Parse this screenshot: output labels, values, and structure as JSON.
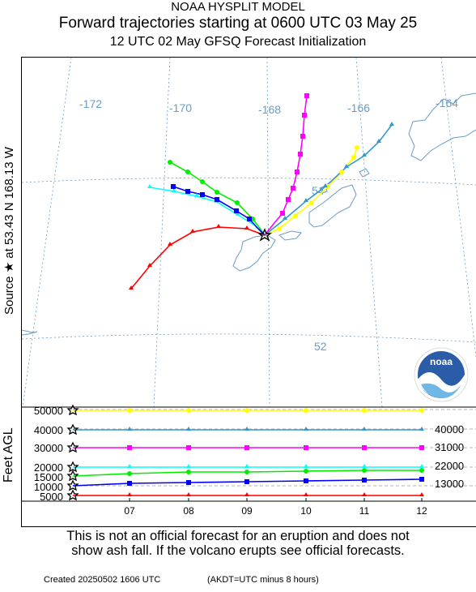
{
  "header": {
    "line1": "NOAA HYSPLIT MODEL",
    "line2": "Forward trajectories starting at 0600 UTC 03 May 25",
    "line3": "12 UTC 02 May     GFSQ  Forecast Initialization"
  },
  "source_label": "Source ★ at   53.43 N  168.13 W",
  "map": {
    "longitude_labels": [
      "-172",
      "-170",
      "-168",
      "-166",
      "-164"
    ],
    "latitude_labels": [
      "54",
      "52"
    ],
    "land_color": "#6a9cc8",
    "grid_color": "#6a9cc8"
  },
  "noaa_logo": {
    "text": "noaa",
    "icon": "noaa-logo-icon"
  },
  "height_panel": {
    "axis_title": "Feet AGL",
    "left_ticks": [
      "50000",
      "40000",
      "30000",
      "20000",
      "15000",
      "10000",
      "5000"
    ],
    "right_labels": [
      "40000",
      "31000",
      "22000",
      "13000"
    ],
    "time_ticks": [
      "07",
      "08",
      "09",
      "10",
      "11",
      "12"
    ]
  },
  "trajectories": [
    {
      "color": "#ffff00",
      "marker": "circle",
      "start_height_ft": 50000
    },
    {
      "color": "#3399cc",
      "marker": "triangle",
      "start_height_ft": 40000
    },
    {
      "color": "#ff00ff",
      "marker": "square",
      "start_height_ft": 30000
    },
    {
      "color": "#00ffff",
      "marker": "triangle",
      "start_height_ft": 20000
    },
    {
      "color": "#00ee00",
      "marker": "circle",
      "start_height_ft": 15000
    },
    {
      "color": "#0000ff",
      "marker": "square",
      "start_height_ft": 10000
    },
    {
      "color": "#ff0000",
      "marker": "triangle",
      "start_height_ft": 5000
    }
  ],
  "disclaimer": {
    "line1": "This is not an official forecast for an eruption and does not",
    "line2": "show ash fall. If the volcano erupts see official forecasts."
  },
  "footer": {
    "created": "Created 20250502 1606 UTC",
    "akdt": "(AKDT=UTC minus 8 hours)"
  }
}
